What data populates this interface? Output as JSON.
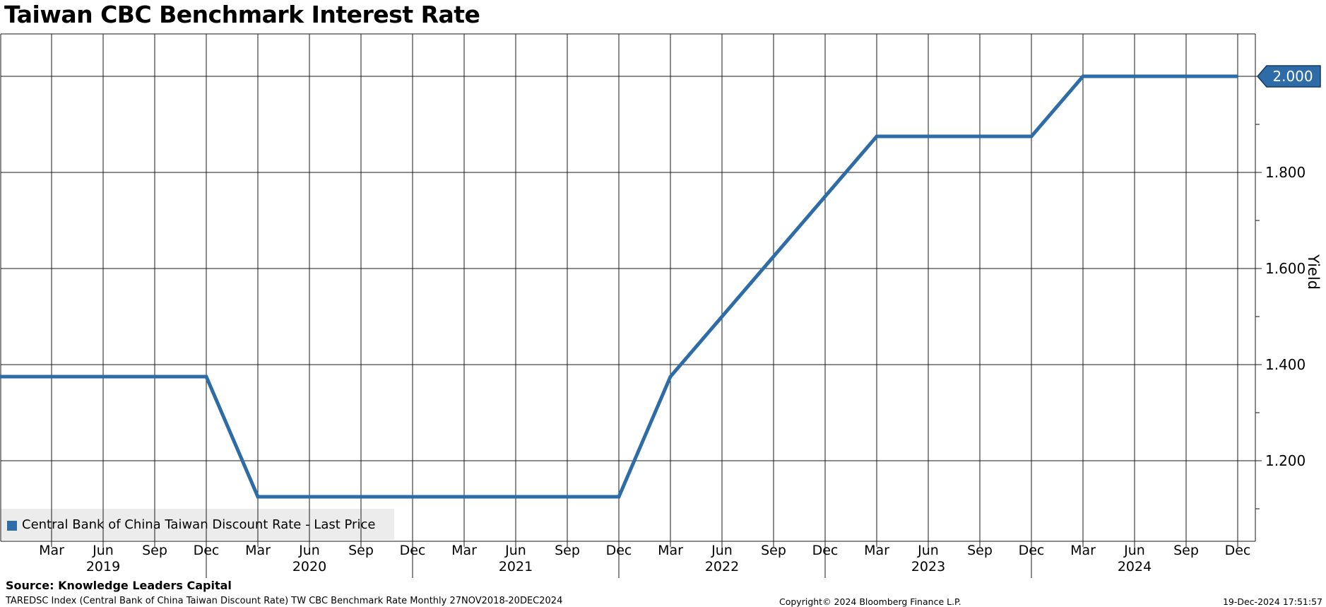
{
  "title": "Taiwan CBC Benchmark Interest Rate",
  "legend": {
    "label": "Central Bank of China Taiwan Discount Rate - Last Price",
    "swatch_color": "#2e6ca8"
  },
  "last_price": {
    "label": "2.000",
    "value": 2.0
  },
  "y_axis": {
    "title": "Yield",
    "major_ticks": [
      {
        "label": "1.800",
        "value": 1.8
      },
      {
        "label": "1.600",
        "value": 1.6
      },
      {
        "label": "1.400",
        "value": 1.4
      },
      {
        "label": "1.200",
        "value": 1.2
      }
    ],
    "minor_tick_values": [
      1.9,
      1.7,
      1.5,
      1.3,
      1.1
    ],
    "gridline_values": [
      2.0,
      1.8,
      1.6,
      1.4,
      1.2
    ]
  },
  "x_axis": {
    "quarter_labels": [
      "Mar",
      "Jun",
      "Sep",
      "Dec"
    ],
    "years": [
      "2019",
      "2020",
      "2021",
      "2022",
      "2023",
      "2024"
    ]
  },
  "footer": {
    "source": "Source: Knowledge Leaders Capital",
    "description": "TAREDSC Index (Central Bank of China Taiwan Discount Rate) TW CBC Benchmark Rate  Monthly 27NOV2018-20DEC2024",
    "copyright": "Copyright© 2024 Bloomberg Finance L.P.",
    "timestamp": "19-Dec-2024 17:51:57"
  },
  "colors": {
    "line": "#2e6ca8",
    "marker_fill": "#2e6ca8",
    "marker_border": "#16395e",
    "grid": "#1a1a1a",
    "legend_bg": "#ececec"
  },
  "chart_data": {
    "type": "line",
    "title": "Taiwan CBC Benchmark Interest Rate",
    "xlabel": "",
    "ylabel": "Yield",
    "x_range": [
      "2018-12",
      "2024-12"
    ],
    "ylim_visible": [
      1.03,
      2.09
    ],
    "y_gridline_step": 0.2,
    "grid": true,
    "legend_position": "bottom-left",
    "series": [
      {
        "name": "Central Bank of China Taiwan Discount Rate - Last Price",
        "color": "#2e6ca8",
        "points": [
          {
            "date": "2018-11",
            "value": 1.375
          },
          {
            "date": "2019-12",
            "value": 1.375
          },
          {
            "date": "2020-03",
            "value": 1.125
          },
          {
            "date": "2021-12",
            "value": 1.125
          },
          {
            "date": "2022-03",
            "value": 1.375
          },
          {
            "date": "2022-06",
            "value": 1.5
          },
          {
            "date": "2022-09",
            "value": 1.625
          },
          {
            "date": "2022-12",
            "value": 1.75
          },
          {
            "date": "2023-03",
            "value": 1.875
          },
          {
            "date": "2023-12",
            "value": 1.875
          },
          {
            "date": "2024-03",
            "value": 2.0
          },
          {
            "date": "2024-12",
            "value": 2.0
          }
        ]
      }
    ]
  }
}
